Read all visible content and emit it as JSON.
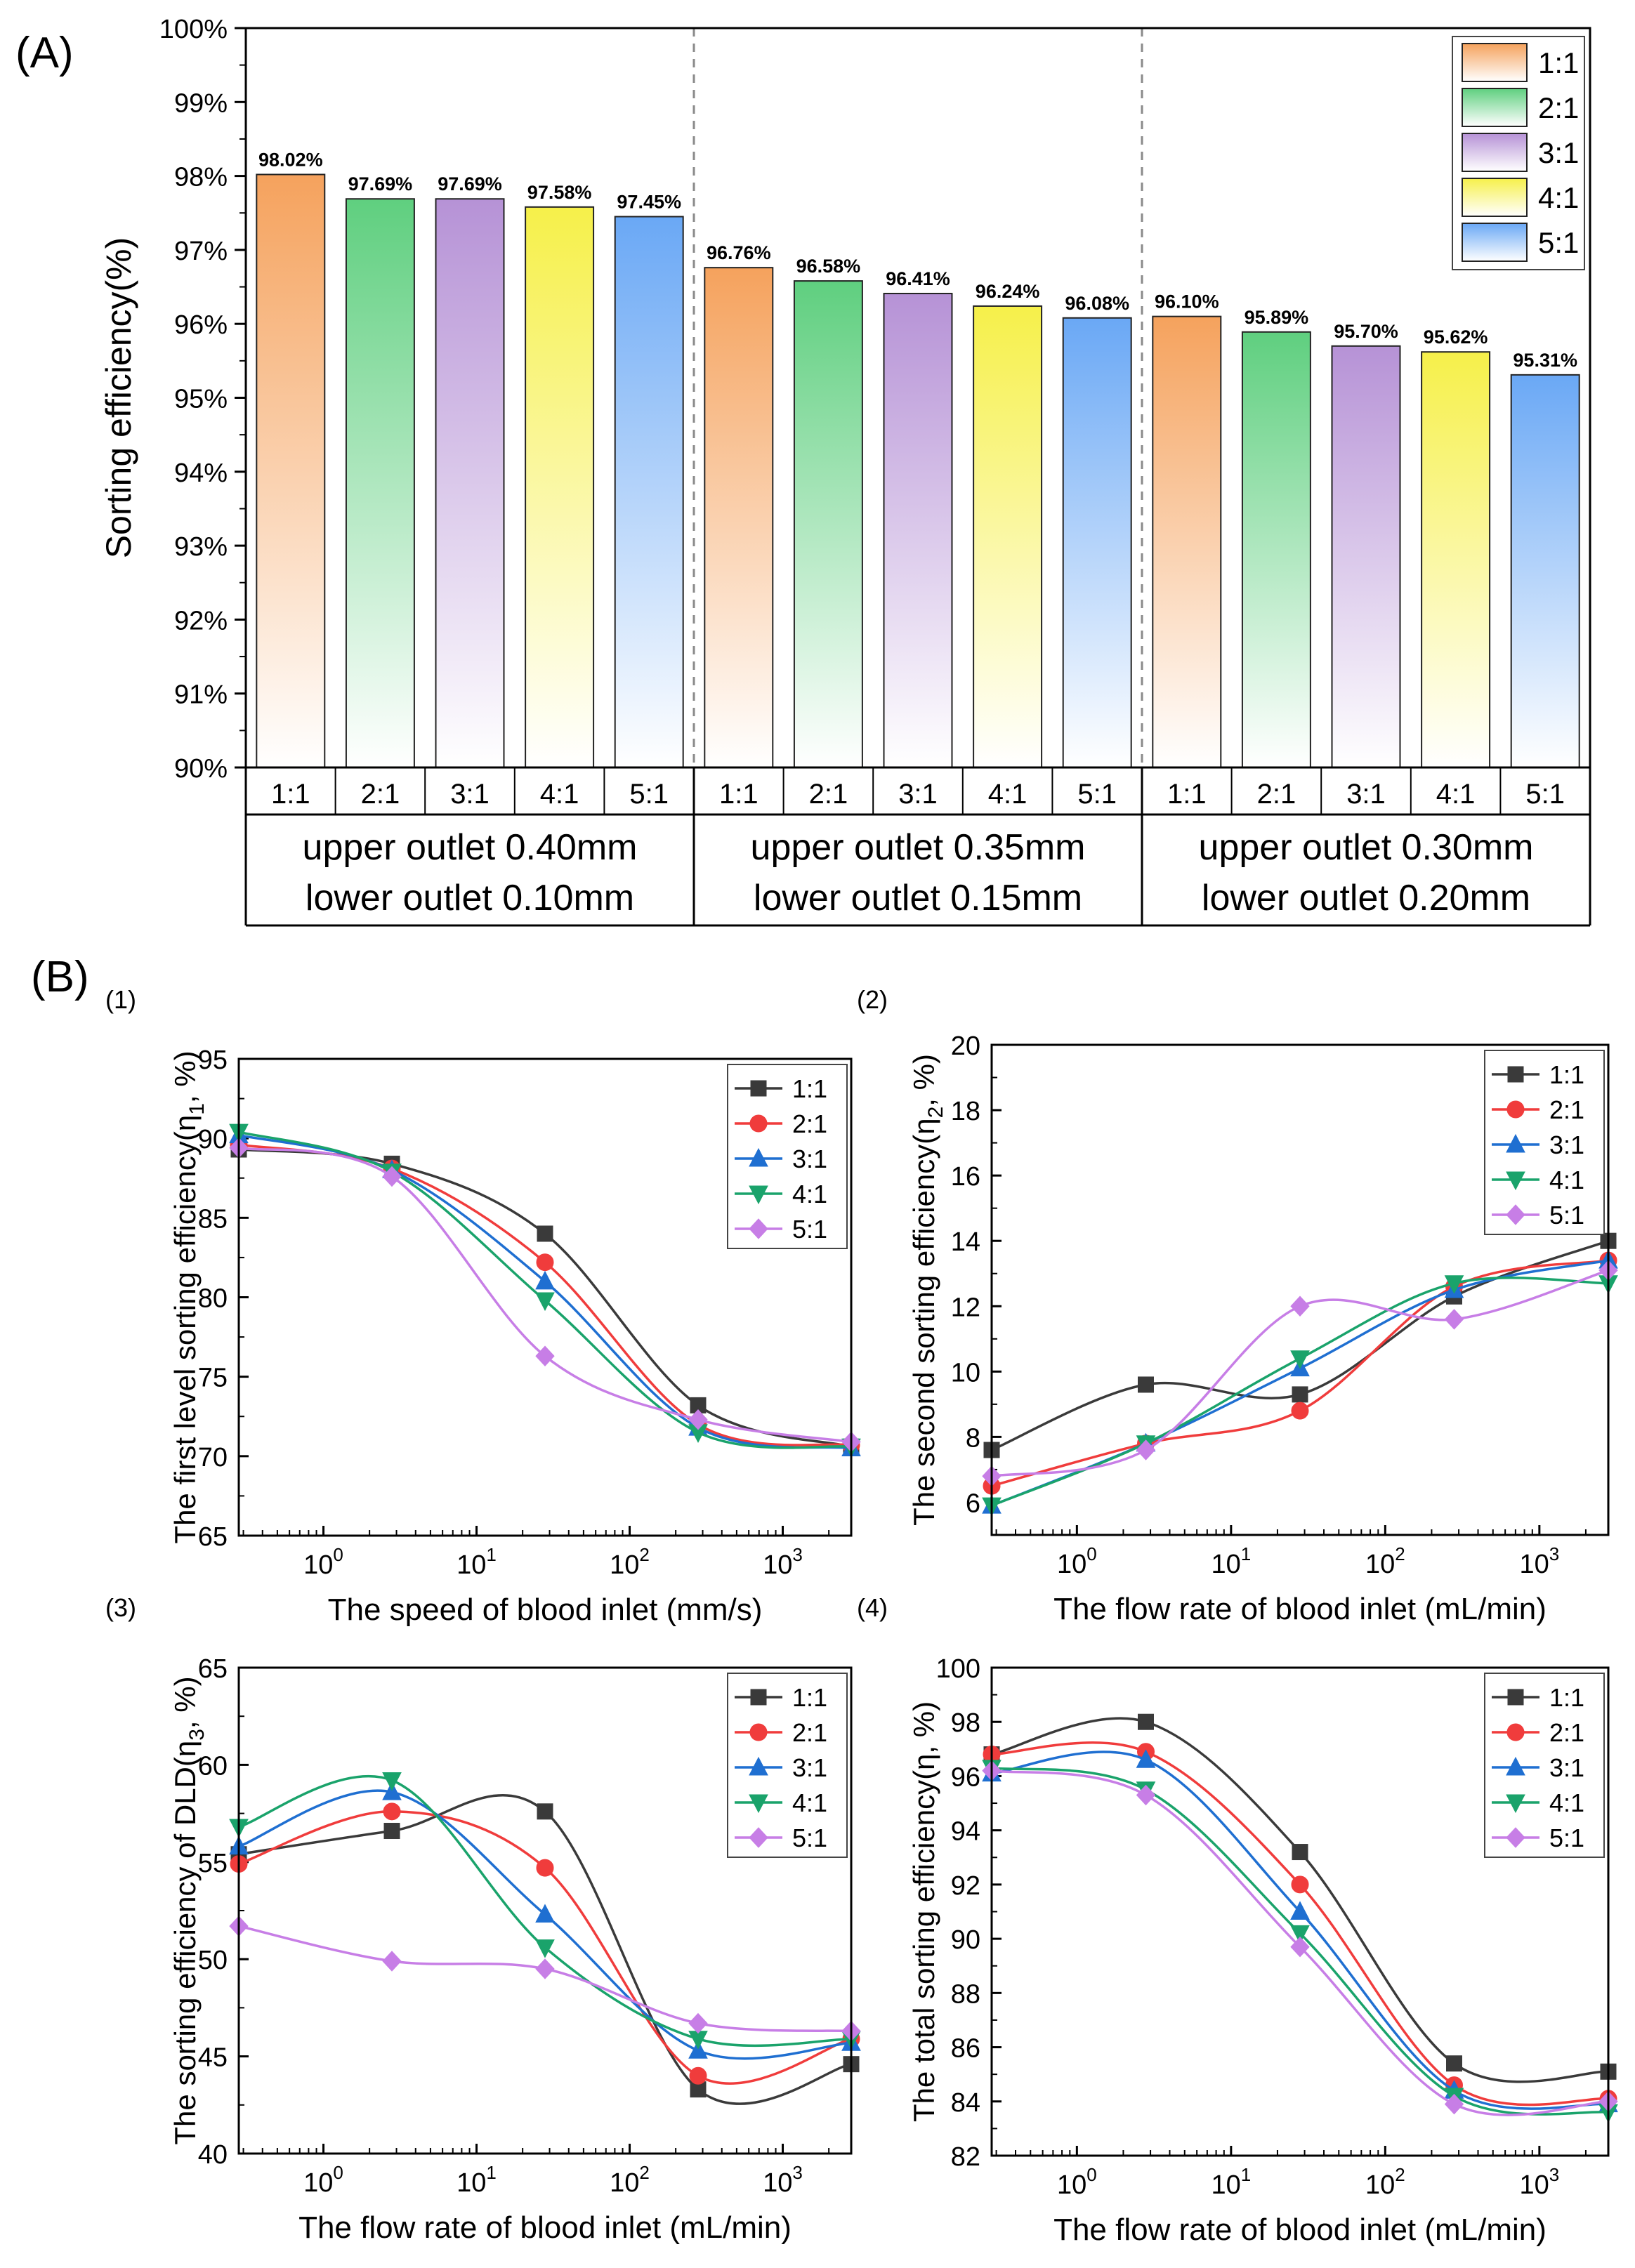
{
  "panel_a": {
    "tag": "(A)",
    "colors": [
      "#f5a25d",
      "#5fcf7f",
      "#b692d6",
      "#f6f04a",
      "#6aa8f5"
    ],
    "chart_data": {
      "type": "bar",
      "ylabel": "Sorting efficiency(%)",
      "ylim": [
        90,
        100
      ],
      "yticks": [
        "90%",
        "91%",
        "92%",
        "93%",
        "94%",
        "95%",
        "96%",
        "97%",
        "98%",
        "99%",
        "100%"
      ],
      "legend_position": "top-right",
      "legend": [
        "1:1",
        "2:1",
        "3:1",
        "4:1",
        "5:1"
      ],
      "groups": [
        {
          "label_line1": "upper outlet 0.40mm",
          "label_line2": "lower outlet 0.10mm",
          "categories": [
            "1:1",
            "2:1",
            "3:1",
            "4:1",
            "5:1"
          ],
          "values": [
            98.02,
            97.69,
            97.69,
            97.58,
            97.45
          ],
          "value_labels": [
            "98.02%",
            "97.69%",
            "97.69%",
            "97.58%",
            "97.45%"
          ]
        },
        {
          "label_line1": "upper outlet 0.35mm",
          "label_line2": "lower outlet 0.15mm",
          "categories": [
            "1:1",
            "2:1",
            "3:1",
            "4:1",
            "5:1"
          ],
          "values": [
            96.76,
            96.58,
            96.41,
            96.24,
            96.08
          ],
          "value_labels": [
            "96.76%",
            "96.58%",
            "96.41%",
            "96.24%",
            "96.08%"
          ]
        },
        {
          "label_line1": "upper outlet 0.30mm",
          "label_line2": "lower outlet 0.20mm",
          "categories": [
            "1:1",
            "2:1",
            "3:1",
            "4:1",
            "5:1"
          ],
          "values": [
            96.1,
            95.89,
            95.7,
            95.62,
            95.31
          ],
          "value_labels": [
            "96.10%",
            "95.89%",
            "95.70%",
            "95.62%",
            "95.31%"
          ]
        }
      ]
    }
  },
  "panel_b": {
    "tag": "(B)",
    "series_colors": [
      "#3a3a3a",
      "#f03c3c",
      "#1f6fd1",
      "#1aa36b",
      "#c77ee6"
    ],
    "series_markers": [
      "square",
      "circle",
      "triangle-up",
      "triangle-down",
      "diamond"
    ],
    "chart_data": [
      {
        "type": "line",
        "id": "(1)",
        "xscale": "log",
        "xlabel": "The speed of blood inlet (mm/s)",
        "ylabel_pre": "The first level sorting efficiency(η",
        "ylabel_sub": "1",
        "ylabel_post": ", %)",
        "x": [
          0.28,
          2.8,
          28,
          280,
          2800
        ],
        "xlim": [
          0.28,
          2800
        ],
        "ylim": [
          65,
          95
        ],
        "yticks": [
          65,
          70,
          75,
          80,
          85,
          90,
          95
        ],
        "xtick_base": "10",
        "xtick_exponents": [
          "0",
          "1",
          "2",
          "3"
        ],
        "legend_position": "top-right",
        "series": [
          {
            "name": "1:1",
            "values": [
              89.3,
              88.4,
              84.0,
              73.2,
              70.6
            ]
          },
          {
            "name": "2:1",
            "values": [
              89.6,
              88.1,
              82.2,
              72.0,
              70.7
            ]
          },
          {
            "name": "3:1",
            "values": [
              90.2,
              88.0,
              81.0,
              71.8,
              70.5
            ]
          },
          {
            "name": "4:1",
            "values": [
              90.4,
              87.9,
              79.8,
              71.5,
              70.6
            ]
          },
          {
            "name": "5:1",
            "values": [
              89.4,
              87.6,
              76.3,
              72.3,
              70.9
            ]
          }
        ]
      },
      {
        "type": "line",
        "id": "(2)",
        "xscale": "log",
        "xlabel": "The flow rate of blood inlet (mL/min)",
        "ylabel_pre": "The second sorting efficiency(η",
        "ylabel_sub": "2",
        "ylabel_post": ", %)",
        "x": [
          0.28,
          2.8,
          28,
          280,
          2800
        ],
        "xlim": [
          0.28,
          2800
        ],
        "ylim": [
          5,
          20
        ],
        "yticks": [
          6,
          8,
          10,
          12,
          14,
          16,
          18,
          20
        ],
        "xtick_base": "10",
        "xtick_exponents": [
          "0",
          "1",
          "2",
          "3"
        ],
        "legend_position": "top-right",
        "series": [
          {
            "name": "1:1",
            "values": [
              7.6,
              9.6,
              9.3,
              12.3,
              14.0
            ]
          },
          {
            "name": "2:1",
            "values": [
              6.5,
              7.8,
              8.8,
              12.6,
              13.4
            ]
          },
          {
            "name": "3:1",
            "values": [
              5.9,
              7.8,
              10.1,
              12.5,
              13.4
            ]
          },
          {
            "name": "4:1",
            "values": [
              5.9,
              7.8,
              10.4,
              12.7,
              12.7
            ]
          },
          {
            "name": "5:1",
            "values": [
              6.8,
              7.6,
              12.0,
              11.6,
              13.1
            ]
          }
        ]
      },
      {
        "type": "line",
        "id": "(3)",
        "xscale": "log",
        "xlabel": "The flow rate of blood inlet (mL/min)",
        "ylabel_pre": "The sorting efficiency of DLD(η",
        "ylabel_sub": "3",
        "ylabel_post": ", %)",
        "x": [
          0.28,
          2.8,
          28,
          280,
          2800
        ],
        "xlim": [
          0.28,
          2800
        ],
        "ylim": [
          40,
          65
        ],
        "yticks": [
          40,
          45,
          50,
          55,
          60,
          65
        ],
        "xtick_base": "10",
        "xtick_exponents": [
          "0",
          "1",
          "2",
          "3"
        ],
        "legend_position": "top-right",
        "series": [
          {
            "name": "1:1",
            "values": [
              55.4,
              56.6,
              57.6,
              43.3,
              44.6
            ]
          },
          {
            "name": "2:1",
            "values": [
              54.9,
              57.6,
              54.7,
              44.0,
              45.9
            ]
          },
          {
            "name": "3:1",
            "values": [
              55.8,
              58.6,
              52.3,
              45.3,
              45.7
            ]
          },
          {
            "name": "4:1",
            "values": [
              56.8,
              59.2,
              50.6,
              45.9,
              45.9
            ]
          },
          {
            "name": "5:1",
            "values": [
              51.7,
              49.9,
              49.5,
              46.7,
              46.3
            ]
          }
        ]
      },
      {
        "type": "line",
        "id": "(4)",
        "xscale": "log",
        "xlabel": "The flow rate of blood inlet (mL/min)",
        "ylabel_pre": "The total sorting efficiency(η, %)",
        "ylabel_sub": "",
        "ylabel_post": "",
        "x": [
          0.28,
          2.8,
          28,
          280,
          2800
        ],
        "xlim": [
          0.28,
          2800
        ],
        "ylim": [
          82,
          100
        ],
        "yticks": [
          82,
          84,
          86,
          88,
          90,
          92,
          94,
          96,
          98,
          100
        ],
        "xtick_base": "10",
        "xtick_exponents": [
          "0",
          "1",
          "2",
          "3"
        ],
        "legend_position": "top-right",
        "series": [
          {
            "name": "1:1",
            "values": [
              96.8,
              98.0,
              93.2,
              85.4,
              85.1
            ]
          },
          {
            "name": "2:1",
            "values": [
              96.8,
              96.9,
              92.0,
              84.6,
              84.1
            ]
          },
          {
            "name": "3:1",
            "values": [
              96.1,
              96.6,
              91.0,
              84.4,
              83.9
            ]
          },
          {
            "name": "4:1",
            "values": [
              96.3,
              95.5,
              90.2,
              84.2,
              83.6
            ]
          },
          {
            "name": "5:1",
            "values": [
              96.2,
              95.3,
              89.7,
              83.9,
              84.0
            ]
          }
        ]
      }
    ]
  }
}
